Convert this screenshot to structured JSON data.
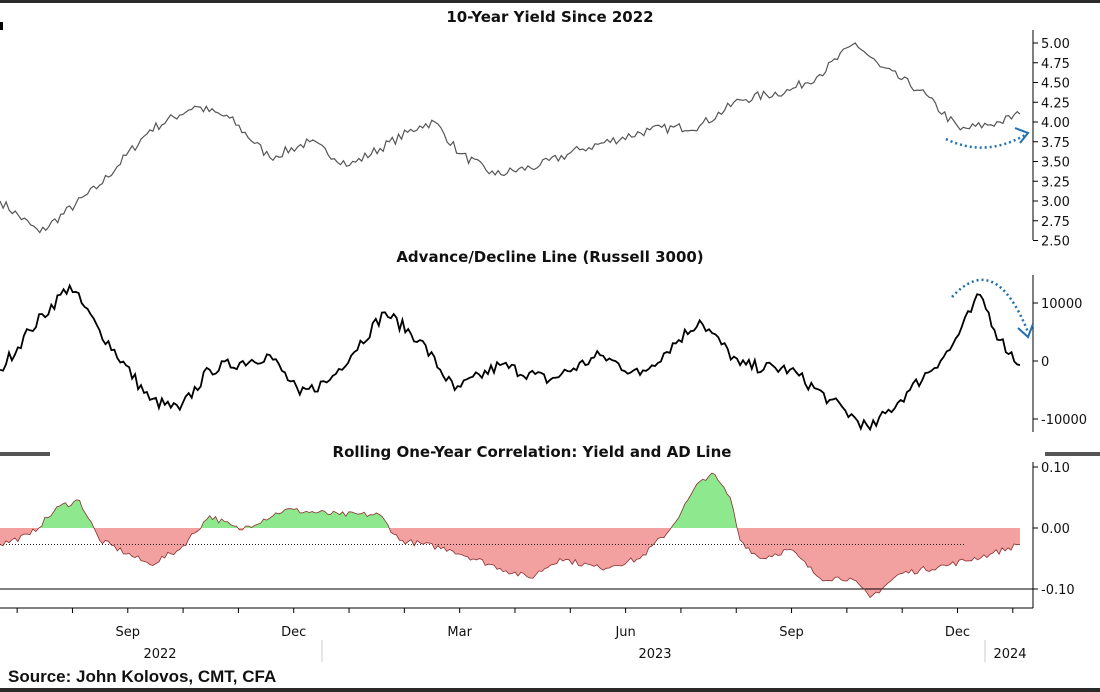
{
  "source": "Source: John Kolovos, CMT, CFA",
  "x_axis": {
    "unit": "months since Jun 1 2022",
    "months": [
      {
        "label": "Sep",
        "t": 3
      },
      {
        "label": "Dec",
        "t": 6
      },
      {
        "label": "Mar",
        "t": 9
      },
      {
        "label": "Jun",
        "t": 12
      },
      {
        "label": "Sep",
        "t": 15
      },
      {
        "label": "Dec",
        "t": 18
      }
    ],
    "years": [
      {
        "label": "2022",
        "t": 4.5
      },
      {
        "label": "2023",
        "t": 13.5
      },
      {
        "label": "2024",
        "t": 19.5
      }
    ],
    "range": [
      0.69,
      19.5
    ]
  },
  "chart_data": [
    {
      "type": "line",
      "title": "10-Year Yield Since 2022",
      "ylim": [
        2.5,
        5.1
      ],
      "yticks": [
        "5.00",
        "4.75",
        "4.50",
        "4.25",
        "4.00",
        "3.75",
        "3.50",
        "3.25",
        "3.00",
        "2.75",
        "2.50"
      ],
      "x": [
        0.69,
        1.41,
        2.49,
        3.4,
        4.21,
        4.84,
        5.57,
        6.29,
        7.01,
        8.28,
        8.55,
        9.0,
        9.64,
        10.45,
        11.17,
        12.44,
        13.34,
        14.07,
        14.97,
        15.51,
        16.15,
        16.6,
        17.32,
        18.05,
        18.77,
        19.13
      ],
      "values": [
        3.0,
        2.6,
        3.2,
        3.9,
        4.2,
        4.05,
        3.55,
        3.75,
        3.45,
        3.95,
        4.0,
        3.6,
        3.33,
        3.45,
        3.65,
        3.9,
        3.95,
        4.28,
        4.4,
        4.6,
        5.0,
        4.7,
        4.4,
        3.9,
        4.0,
        4.1
      ],
      "annotation": "dotted arrow pointing up",
      "color": "#555555"
    },
    {
      "type": "line",
      "title": "Advance/Decline Line (Russell 3000)",
      "ylim": [
        -12000,
        15000
      ],
      "yticks": [
        "10000",
        "0",
        "-10000"
      ],
      "x": [
        0.69,
        1.23,
        1.95,
        2.49,
        3.4,
        3.94,
        4.48,
        5.57,
        6.11,
        6.65,
        7.65,
        8.28,
        8.91,
        9.73,
        10.63,
        11.54,
        12.26,
        13.34,
        14.07,
        14.97,
        15.69,
        16.42,
        17.14,
        17.86,
        18.41,
        18.77,
        19.13
      ],
      "values": [
        -1500,
        5300,
        13000,
        5300,
        -6700,
        -8400,
        -1500,
        1000,
        -5800,
        -3300,
        8400,
        3600,
        -5000,
        -700,
        -3300,
        1000,
        -2400,
        7000,
        -700,
        -1500,
        -6700,
        -11800,
        -5000,
        1900,
        11400,
        3600,
        -700
      ],
      "annotation": "dotted arrow pointing down",
      "color": "#000000"
    },
    {
      "type": "area",
      "title": "Rolling One-Year Correlation: Yield and AD Line",
      "ylim": [
        -0.13,
        0.11
      ],
      "yticks": [
        "0.10",
        "0.00",
        "-0.10"
      ],
      "x": [
        0.69,
        1.23,
        1.77,
        2.13,
        2.49,
        3.4,
        3.94,
        4.48,
        5.02,
        5.84,
        6.83,
        7.55,
        7.91,
        8.82,
        9.73,
        10.27,
        10.81,
        11.54,
        12.26,
        12.8,
        13.34,
        13.56,
        13.89,
        14.07,
        14.43,
        14.97,
        15.51,
        16.06,
        16.42,
        16.96,
        17.86,
        18.59,
        19.13
      ],
      "values": [
        -0.027,
        -0.011,
        0.036,
        0.045,
        -0.02,
        -0.06,
        -0.035,
        0.02,
        -0.003,
        0.03,
        0.022,
        0.022,
        -0.02,
        -0.035,
        -0.066,
        -0.082,
        -0.05,
        -0.066,
        -0.05,
        -0.003,
        0.076,
        0.09,
        0.05,
        -0.02,
        -0.05,
        -0.035,
        -0.082,
        -0.082,
        -0.114,
        -0.075,
        -0.06,
        -0.043,
        -0.027
      ],
      "reference_lines": [
        -0.027,
        -0.1
      ],
      "positive_color": "#8ee88e",
      "negative_color": "#f2a0a0"
    }
  ]
}
